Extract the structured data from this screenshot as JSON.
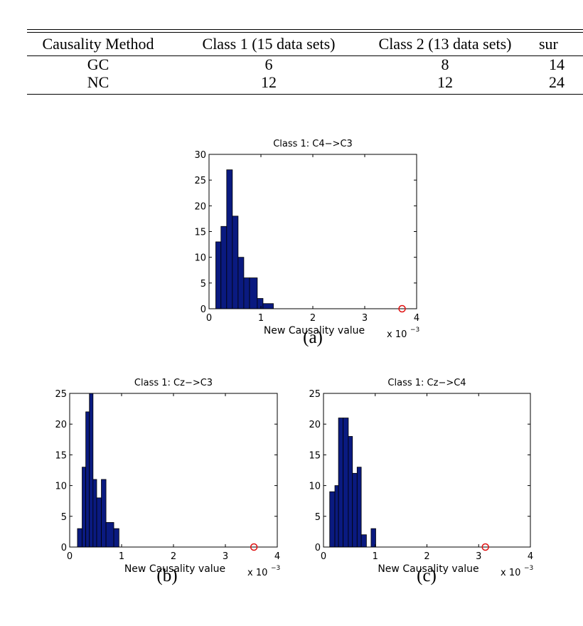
{
  "table": {
    "headers": [
      "Causality Method",
      "Class 1 (15 data sets)",
      "Class 2 (13 data sets)",
      "sur"
    ],
    "rows": [
      [
        "GC",
        "6",
        "8",
        "14"
      ],
      [
        "NC",
        "12",
        "12",
        "24"
      ]
    ]
  },
  "chart_data": [
    {
      "type": "bar",
      "title": "Class 1: C4−>C3",
      "xlabel": "New Causality value",
      "x_multiplier": "x 10",
      "x_multiplier_exp": "−3",
      "xlim": [
        0,
        4
      ],
      "ylim": [
        0,
        30
      ],
      "xticks": [
        "0",
        "1",
        "2",
        "3",
        "4"
      ],
      "yticks": [
        "0",
        "5",
        "10",
        "15",
        "20",
        "25",
        "30"
      ],
      "bins": [
        {
          "x0": 0.13,
          "x1": 0.23,
          "count": 13
        },
        {
          "x0": 0.23,
          "x1": 0.34,
          "count": 16
        },
        {
          "x0": 0.34,
          "x1": 0.45,
          "count": 27
        },
        {
          "x0": 0.45,
          "x1": 0.56,
          "count": 18
        },
        {
          "x0": 0.56,
          "x1": 0.67,
          "count": 10
        },
        {
          "x0": 0.67,
          "x1": 0.78,
          "count": 6
        },
        {
          "x0": 0.78,
          "x1": 0.93,
          "count": 6
        },
        {
          "x0": 0.93,
          "x1": 1.04,
          "count": 2
        },
        {
          "x0": 1.04,
          "x1": 1.24,
          "count": 1
        }
      ],
      "marker": {
        "x": 3.72,
        "y": 0
      },
      "bar_color": "#0a1a80",
      "marker_color": "#e01010",
      "caption": "(a)"
    },
    {
      "type": "bar",
      "title": "Class 1: Cz−>C3",
      "xlabel": "New Causality value",
      "x_multiplier": "x 10",
      "x_multiplier_exp": "−3",
      "xlim": [
        0,
        4
      ],
      "ylim": [
        0,
        25
      ],
      "xticks": [
        "0",
        "1",
        "2",
        "3",
        "4"
      ],
      "yticks": [
        "0",
        "5",
        "10",
        "15",
        "20",
        "25"
      ],
      "bins": [
        {
          "x0": 0.15,
          "x1": 0.24,
          "count": 3
        },
        {
          "x0": 0.24,
          "x1": 0.31,
          "count": 13
        },
        {
          "x0": 0.31,
          "x1": 0.38,
          "count": 22
        },
        {
          "x0": 0.38,
          "x1": 0.45,
          "count": 25
        },
        {
          "x0": 0.45,
          "x1": 0.52,
          "count": 11
        },
        {
          "x0": 0.52,
          "x1": 0.61,
          "count": 8
        },
        {
          "x0": 0.61,
          "x1": 0.7,
          "count": 11
        },
        {
          "x0": 0.7,
          "x1": 0.85,
          "count": 4
        },
        {
          "x0": 0.85,
          "x1": 0.95,
          "count": 3
        }
      ],
      "marker": {
        "x": 3.55,
        "y": 0
      },
      "bar_color": "#0a1a80",
      "marker_color": "#e01010",
      "caption": "(b)"
    },
    {
      "type": "bar",
      "title": "Class 1: Cz−>C4",
      "xlabel": "New Causality value",
      "x_multiplier": "x 10",
      "x_multiplier_exp": "−3",
      "xlim": [
        0,
        4
      ],
      "ylim": [
        0,
        25
      ],
      "xticks": [
        "0",
        "1",
        "2",
        "3",
        "4"
      ],
      "yticks": [
        "0",
        "5",
        "10",
        "15",
        "20",
        "25"
      ],
      "bins": [
        {
          "x0": 0.12,
          "x1": 0.22,
          "count": 9
        },
        {
          "x0": 0.22,
          "x1": 0.29,
          "count": 10
        },
        {
          "x0": 0.29,
          "x1": 0.38,
          "count": 21
        },
        {
          "x0": 0.38,
          "x1": 0.48,
          "count": 21
        },
        {
          "x0": 0.48,
          "x1": 0.56,
          "count": 18
        },
        {
          "x0": 0.56,
          "x1": 0.65,
          "count": 12
        },
        {
          "x0": 0.65,
          "x1": 0.73,
          "count": 13
        },
        {
          "x0": 0.73,
          "x1": 0.83,
          "count": 2
        },
        {
          "x0": 0.83,
          "x1": 0.92,
          "count": 0
        },
        {
          "x0": 0.92,
          "x1": 1.01,
          "count": 3
        }
      ],
      "marker": {
        "x": 3.13,
        "y": 0
      },
      "bar_color": "#0a1a80",
      "marker_color": "#e01010",
      "caption": "(c)"
    }
  ]
}
